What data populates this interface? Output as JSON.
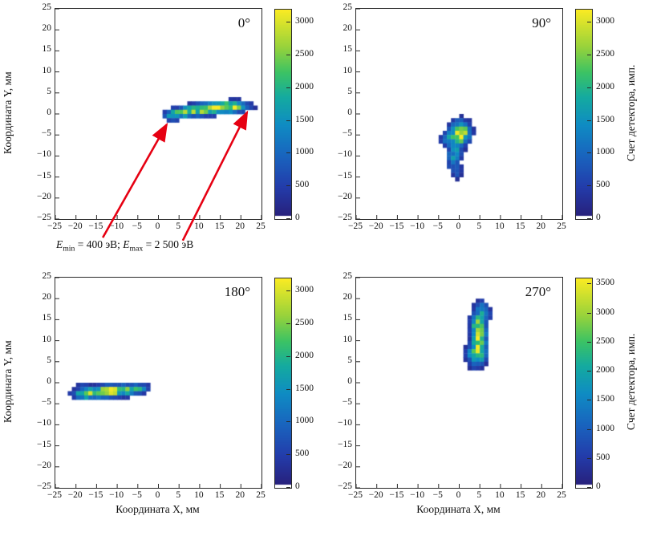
{
  "figure": {
    "background": "#ffffff",
    "accent_red": "#e60012",
    "axis_color": "#2a2a2a",
    "annotation": {
      "e1_sym": "E",
      "e1_sub": "min",
      "e1_eq": " = 400 эВ; ",
      "e2_sym": "E",
      "e2_sub": "max",
      "e2_eq": " = 2 500 эВ"
    },
    "colormap": {
      "zero_color": "#ffffff",
      "stops": [
        [
          0.0,
          [
            40,
            30,
            120
          ]
        ],
        [
          0.15,
          [
            35,
            60,
            170
          ]
        ],
        [
          0.3,
          [
            25,
            100,
            190
          ]
        ],
        [
          0.45,
          [
            15,
            140,
            195
          ]
        ],
        [
          0.58,
          [
            20,
            170,
            160
          ]
        ],
        [
          0.7,
          [
            60,
            195,
            100
          ]
        ],
        [
          0.82,
          [
            150,
            210,
            60
          ]
        ],
        [
          1.0,
          [
            250,
            235,
            35
          ]
        ]
      ]
    }
  },
  "chart_data": [
    {
      "type": "heatmap",
      "angle_label": "0°",
      "position": "top-left",
      "xlabel": null,
      "ylabel": "Координата Y, мм",
      "colorbar_label": null,
      "xlim": [
        -25,
        25
      ],
      "ylim": [
        -25,
        25
      ],
      "xticks": [
        -25,
        -20,
        -15,
        -10,
        -5,
        0,
        5,
        10,
        15,
        20,
        25
      ],
      "yticks": [
        -25,
        -20,
        -15,
        -10,
        -5,
        0,
        5,
        10,
        15,
        20,
        25
      ],
      "colorbar": {
        "vmin": 0,
        "vmax": 3200,
        "tick_values": [
          0,
          500,
          1000,
          1500,
          2000,
          2500,
          3000
        ],
        "tick_labels": [
          "0",
          "500",
          "1000",
          "1500",
          "2000",
          "2500",
          "3000"
        ]
      },
      "threshold": 280,
      "blobs": [
        {
          "cx": 13.5,
          "cy": 1.3,
          "sx": 4.2,
          "sy": 0.9,
          "amp": 3100,
          "rot": 4
        },
        {
          "cx": 6.0,
          "cy": 0.3,
          "sx": 2.8,
          "sy": 0.9,
          "amp": 1600,
          "rot": 8
        },
        {
          "cx": 19.0,
          "cy": 1.8,
          "sx": 2.0,
          "sy": 0.8,
          "amp": 1400,
          "rot": 0
        },
        {
          "cx": 3.5,
          "cy": -0.5,
          "sx": 1.2,
          "sy": 0.8,
          "amp": 800,
          "rot": 0
        }
      ],
      "arrows": [
        {
          "from": [
            -13.3,
            -29.6
          ],
          "to": [
            2.2,
            -2.7
          ]
        },
        {
          "from": [
            6.1,
            -30.3
          ],
          "to": [
            21.7,
            0.2
          ]
        }
      ]
    },
    {
      "type": "heatmap",
      "angle_label": "90°",
      "position": "top-right",
      "xlabel": null,
      "ylabel": null,
      "colorbar_label": "Счет детектора, имп.",
      "xlim": [
        -25,
        25
      ],
      "ylim": [
        -25,
        25
      ],
      "xticks": [
        -25,
        -20,
        -15,
        -10,
        -5,
        0,
        5,
        10,
        15,
        20,
        25
      ],
      "yticks": [
        -25,
        -20,
        -15,
        -10,
        -5,
        0,
        5,
        10,
        15,
        20,
        25
      ],
      "colorbar": {
        "vmin": 0,
        "vmax": 3200,
        "tick_values": [
          0,
          500,
          1000,
          1500,
          2000,
          2500,
          3000
        ],
        "tick_labels": [
          "0",
          "500",
          "1000",
          "1500",
          "2000",
          "2500",
          "3000"
        ]
      },
      "threshold": 280,
      "blobs": [
        {
          "cx": 0.2,
          "cy": -4.5,
          "sx": 1.6,
          "sy": 1.8,
          "amp": 3100,
          "rot": -10
        },
        {
          "cx": -1.2,
          "cy": -9.5,
          "sx": 1.1,
          "sy": 2.2,
          "amp": 1500,
          "rot": -15
        },
        {
          "cx": -0.5,
          "cy": -13.5,
          "sx": 0.9,
          "sy": 1.2,
          "amp": 900,
          "rot": 0
        },
        {
          "cx": -3.0,
          "cy": -6.0,
          "sx": 1.2,
          "sy": 1.0,
          "amp": 900,
          "rot": 0
        }
      ],
      "arrows": null
    },
    {
      "type": "heatmap",
      "angle_label": "180°",
      "position": "bottom-left",
      "xlabel": "Координата X, мм",
      "ylabel": "Координата Y, мм",
      "colorbar_label": null,
      "xlim": [
        -25,
        25
      ],
      "ylim": [
        -25,
        25
      ],
      "xticks": [
        -25,
        -20,
        -15,
        -10,
        -5,
        0,
        5,
        10,
        15,
        20,
        25
      ],
      "yticks": [
        -25,
        -20,
        -15,
        -10,
        -5,
        0,
        5,
        10,
        15,
        20,
        25
      ],
      "colorbar": {
        "vmin": 0,
        "vmax": 3200,
        "tick_values": [
          0,
          500,
          1000,
          1500,
          2000,
          2500,
          3000
        ],
        "tick_labels": [
          "0",
          "500",
          "1000",
          "1500",
          "2000",
          "2500",
          "3000"
        ]
      },
      "threshold": 280,
      "blobs": [
        {
          "cx": -11.5,
          "cy": -2.0,
          "sx": 4.0,
          "sy": 0.95,
          "amp": 3100,
          "rot": 4
        },
        {
          "cx": -17.5,
          "cy": -2.6,
          "sx": 2.2,
          "sy": 0.8,
          "amp": 1600,
          "rot": 5
        },
        {
          "cx": -5.0,
          "cy": -1.4,
          "sx": 1.8,
          "sy": 0.7,
          "amp": 1000,
          "rot": 5
        },
        {
          "cx": -18.5,
          "cy": -0.2,
          "sx": 0.8,
          "sy": 0.5,
          "amp": 600,
          "rot": 0
        }
      ],
      "arrows": null
    },
    {
      "type": "heatmap",
      "angle_label": "270°",
      "position": "bottom-right",
      "xlabel": "Координата X, мм",
      "ylabel": null,
      "colorbar_label": "Счет детектора, имп.",
      "xlim": [
        -25,
        25
      ],
      "ylim": [
        -25,
        25
      ],
      "xticks": [
        -25,
        -20,
        -15,
        -10,
        -5,
        0,
        5,
        10,
        15,
        20,
        25
      ],
      "yticks": [
        -25,
        -20,
        -15,
        -10,
        -5,
        0,
        5,
        10,
        15,
        20,
        25
      ],
      "colorbar": {
        "vmin": 0,
        "vmax": 3600,
        "tick_values": [
          0,
          500,
          1000,
          1500,
          2000,
          2500,
          3000,
          3500
        ],
        "tick_labels": [
          "0",
          "500",
          "1000",
          "1500",
          "2000",
          "2500",
          "3000",
          "3500"
        ]
      },
      "threshold": 300,
      "blobs": [
        {
          "cx": 4.8,
          "cy": 11.5,
          "sx": 1.1,
          "sy": 3.2,
          "amp": 3600,
          "rot": 8
        },
        {
          "cx": 3.8,
          "cy": 6.5,
          "sx": 1.3,
          "sy": 1.8,
          "amp": 2200,
          "rot": 10
        },
        {
          "cx": 6.0,
          "cy": 17.0,
          "sx": 1.0,
          "sy": 1.6,
          "amp": 1500,
          "rot": 15
        }
      ],
      "arrows": null
    }
  ]
}
